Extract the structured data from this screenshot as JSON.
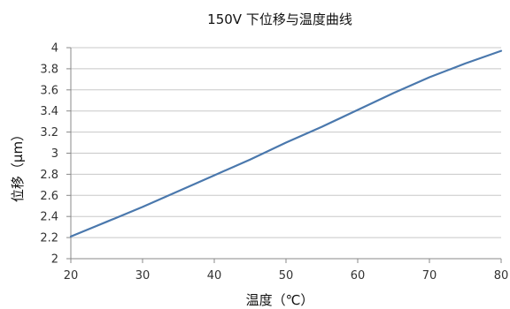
{
  "chart_data": {
    "type": "line",
    "title": "150V 下位移与温度曲线",
    "xlabel": "温度（℃）",
    "ylabel": "位移（μm）",
    "xlim": [
      20,
      80
    ],
    "ylim": [
      2,
      4
    ],
    "x_ticks": [
      "20",
      "30",
      "40",
      "50",
      "60",
      "70",
      "80"
    ],
    "y_ticks": [
      "2",
      "2.2",
      "2.4",
      "2.6",
      "2.8",
      "3",
      "3.2",
      "3.4",
      "3.6",
      "3.8",
      "4"
    ],
    "grid": "horizontal",
    "legend": "none",
    "series": [
      {
        "color": "#4a78ad",
        "x": [
          20,
          25,
          30,
          35,
          40,
          45,
          50,
          55,
          60,
          65,
          70,
          75,
          80
        ],
        "y": [
          2.21,
          2.35,
          2.49,
          2.64,
          2.79,
          2.94,
          3.1,
          3.25,
          3.41,
          3.57,
          3.72,
          3.85,
          3.97
        ]
      }
    ],
    "colors": {
      "grid": "#c8c8c8",
      "axis": "#888888",
      "line": "#4a78ad"
    }
  }
}
